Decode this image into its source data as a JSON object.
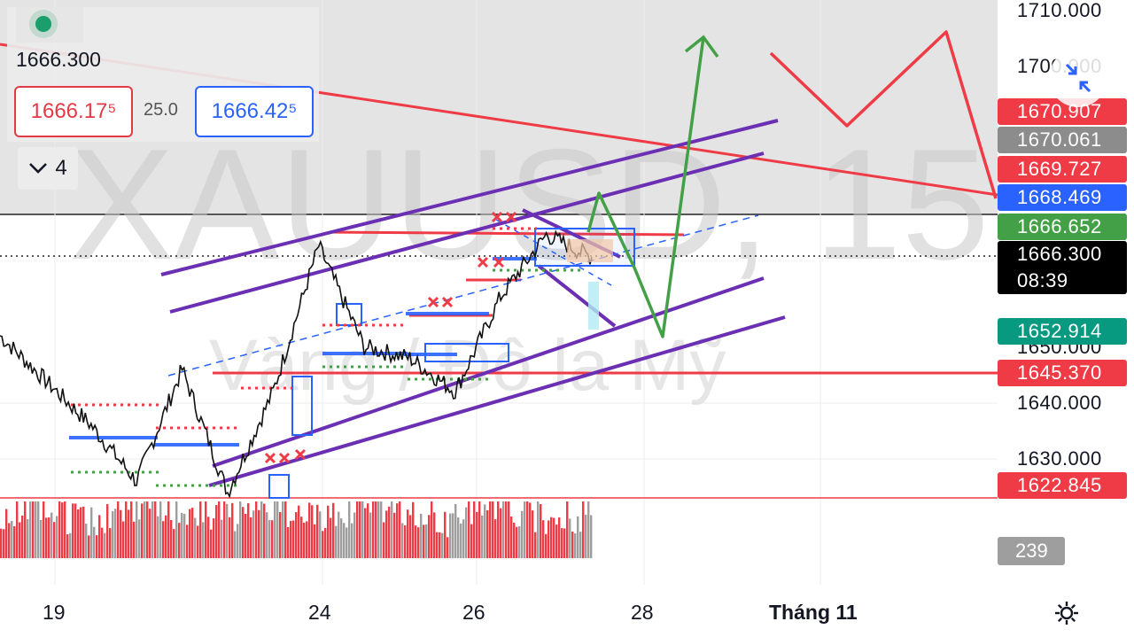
{
  "header": {
    "last_price": "1666.300",
    "bid": "1666.17⁵",
    "spread": "25.0",
    "ask": "1666.42⁵",
    "collapse_count": "4",
    "status_color": "#1a9e6b"
  },
  "watermark": {
    "symbol": "XAUUSD, 15",
    "description": "Vàng / Đô la Mỹ"
  },
  "price_axis": {
    "ticks": [
      {
        "label": "1710.000",
        "value": 1710
      },
      {
        "label": "1700.000",
        "value": 1700
      },
      {
        "label": "1650.000",
        "value": 1650
      },
      {
        "label": "1640.000",
        "value": 1640
      },
      {
        "label": "1630.000",
        "value": 1630
      }
    ],
    "tags": [
      {
        "label": "1670.907",
        "value": 1670.907,
        "color": "#ef3b46"
      },
      {
        "label": "1670.061",
        "value": 1670.061,
        "color": "#8c8c8c"
      },
      {
        "label": "1669.727",
        "value": 1669.727,
        "color": "#ef3b46"
      },
      {
        "label": "1668.469",
        "value": 1668.469,
        "color": "#2962ff"
      },
      {
        "label": "1666.652",
        "value": 1666.652,
        "color": "#43a047"
      },
      {
        "label": "1652.914",
        "value": 1652.914,
        "color": "#089981"
      },
      {
        "label": "1645.370",
        "value": 1645.37,
        "color": "#ef3b46"
      },
      {
        "label": "1622.845",
        "value": 1622.845,
        "color": "#ef3b46"
      }
    ],
    "current": {
      "price": "1666.300",
      "countdown": "08:39"
    }
  },
  "volume_tag": "239",
  "time_axis": {
    "labels": [
      "19",
      "24",
      "26",
      "28",
      "Tháng 11"
    ]
  },
  "chart_data": {
    "type": "line",
    "symbol": "XAUUSD",
    "timeframe": "15",
    "x_labels": [
      "19",
      "24",
      "26",
      "28",
      "Tháng 11"
    ],
    "ylim": [
      1622,
      1712
    ],
    "price_series_keypoints": [
      {
        "x": "18 Oct",
        "y": 1652
      },
      {
        "x": "19 Oct",
        "y": 1644
      },
      {
        "x": "20 Oct",
        "y": 1636
      },
      {
        "x": "21 Oct",
        "y": 1626
      },
      {
        "x": "21 Oct late",
        "y": 1646
      },
      {
        "x": "22 Oct",
        "y": 1624
      },
      {
        "x": "23 Oct",
        "y": 1642
      },
      {
        "x": "24 Oct",
        "y": 1668
      },
      {
        "x": "24 Oct late",
        "y": 1650
      },
      {
        "x": "25 Oct",
        "y": 1648
      },
      {
        "x": "25 Oct late",
        "y": 1642
      },
      {
        "x": "26 Oct",
        "y": 1659
      },
      {
        "x": "26 Oct late",
        "y": 1670
      },
      {
        "x": "27 Oct",
        "y": 1666
      }
    ],
    "horizontal_levels": [
      1670.907,
      1669.727,
      1666.652,
      1645.37,
      1622.845
    ],
    "current_price": 1666.3,
    "last_volume": 239
  }
}
